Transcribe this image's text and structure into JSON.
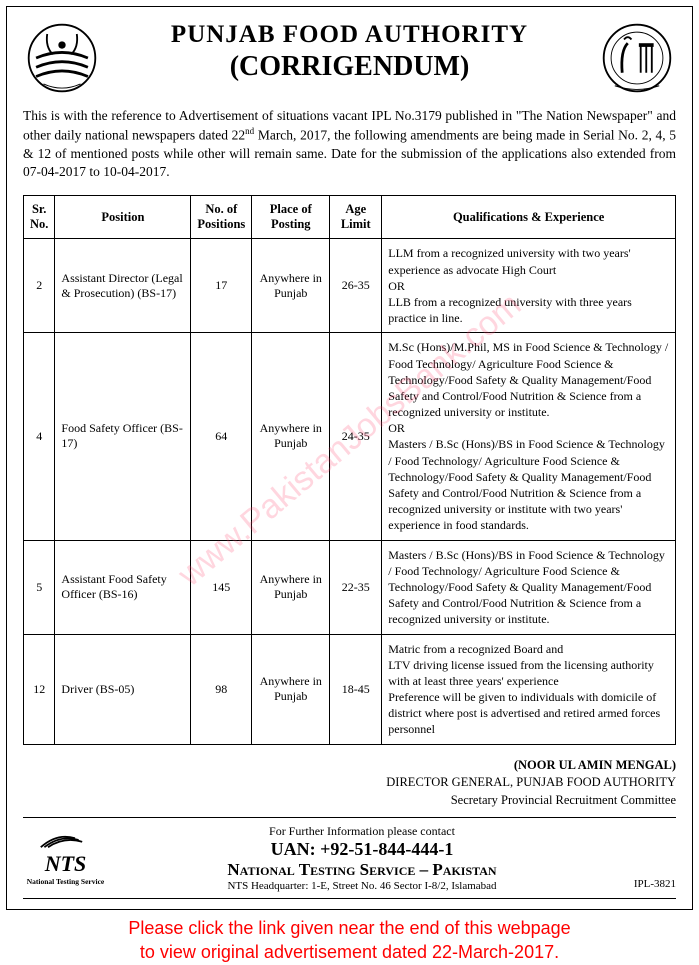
{
  "header": {
    "title": "PUNJAB FOOD AUTHORITY",
    "subtitle": "(CORRIGENDUM)"
  },
  "intro": {
    "prefix": "This is with the reference to Advertisement of situations vacant IPL No.3179 published in \"The Nation Newspaper\" and other daily national newspapers dated 22",
    "ordinal": "nd",
    "suffix": " March, 2017, the following amendments are being made in Serial No. 2, 4, 5 & 12 of mentioned posts while other will remain same. Date for the submission of the applications also extended from 07-04-2017 to 10-04-2017."
  },
  "table": {
    "headers": {
      "sr": "Sr. No.",
      "position": "Position",
      "num": "No. of Positions",
      "place": "Place of Posting",
      "age": "Age Limit",
      "qual": "Qualifications & Experience"
    },
    "rows": [
      {
        "sr": "2",
        "position": "Assistant Director (Legal & Prosecution) (BS-17)",
        "num": "17",
        "place": "Anywhere in Punjab",
        "age": "26-35",
        "qual": "LLM from a recognized university with two years' experience as advocate High Court\nOR\nLLB from a recognized university with three years practice in line."
      },
      {
        "sr": "4",
        "position": "Food Safety Officer (BS-17)",
        "num": "64",
        "place": "Anywhere in Punjab",
        "age": "24-35",
        "qual": "M.Sc (Hons)/M.Phil, MS in Food Science & Technology / Food Technology/ Agriculture Food Science & Technology/Food Safety & Quality Management/Food Safety and Control/Food Nutrition & Science from a recognized university or institute.\nOR\nMasters / B.Sc (Hons)/BS in Food Science & Technology / Food Technology/ Agriculture Food Science & Technology/Food Safety & Quality Management/Food Safety and Control/Food Nutrition & Science from a recognized university or institute with two years' experience in food standards."
      },
      {
        "sr": "5",
        "position": "Assistant Food Safety Officer (BS-16)",
        "num": "145",
        "place": "Anywhere in Punjab",
        "age": "22-35",
        "qual": "Masters / B.Sc (Hons)/BS in Food Science & Technology / Food Technology/ Agriculture Food Science & Technology/Food Safety & Quality Management/Food Safety and Control/Food Nutrition & Science from a recognized university or institute."
      },
      {
        "sr": "12",
        "position": "Driver (BS-05)",
        "num": "98",
        "place": "Anywhere in Punjab",
        "age": "18-45",
        "qual": "Matric from a recognized Board and\nLTV driving license issued from the licensing authority with at least three years' experience\nPreference will be given to individuals with domicile of district where post is advertised and retired armed forces personnel"
      }
    ]
  },
  "signature": {
    "name": "(NOOR UL AMIN MENGAL)",
    "line1": "DIRECTOR GENERAL, PUNJAB FOOD AUTHORITY",
    "line2": "Secretary Provincial Recruitment Committee"
  },
  "contact": {
    "nts_big": "NTS",
    "nts_small": "National Testing Service",
    "info_label": "For Further Information please contact",
    "uan": "UAN: +92-51-844-444-1",
    "org": "National Testing Service – Pakistan",
    "address": "NTS Headquarter: 1-E, Street No. 46 Sector I-8/2, Islamabad",
    "ipl": "IPL-3821"
  },
  "footer": {
    "line1": "Please click the link given near the end of this webpage",
    "line2": "to view original advertisement dated 22-March-2017."
  },
  "watermark": "www.PakistanJobsBank.com",
  "colors": {
    "footer_text": "#ff0000",
    "watermark_text": "rgba(255,70,110,0.22)",
    "border": "#000000",
    "text": "#000000",
    "background": "#ffffff"
  }
}
